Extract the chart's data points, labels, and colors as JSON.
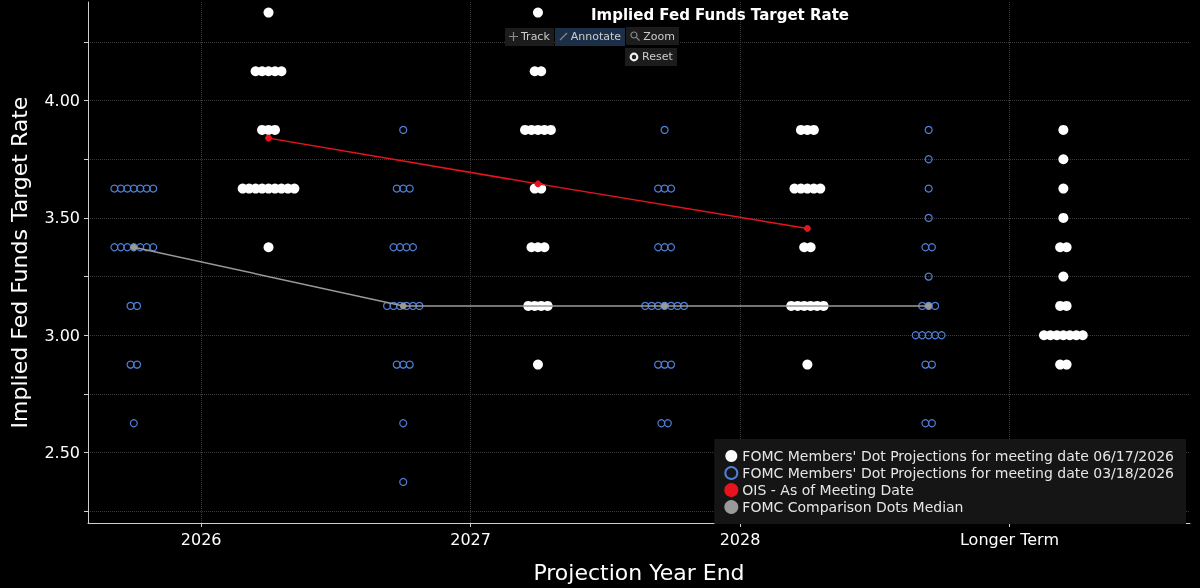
{
  "chart_data": {
    "type": "scatter",
    "title": "Implied Fed Funds Target Rate",
    "xlabel": "Projection Year End",
    "ylabel": "Implied Fed Funds Target Rate",
    "annotations": [
      "Track",
      "Annotate",
      "Zoom",
      "Reset"
    ],
    "xlim": [
      2025.58,
      2029.67
    ],
    "ylim": [
      2.2,
      4.42
    ],
    "xticks": [
      2026,
      2027,
      2028,
      {
        "value": 2029,
        "label": "Longer Term"
      }
    ],
    "yticks": [
      {
        "value": 2.25,
        "label": null
      },
      {
        "value": 2.5,
        "label": "2.50"
      },
      {
        "value": 2.75,
        "label": null
      },
      {
        "value": 3,
        "label": "3.00"
      },
      {
        "value": 3.25,
        "label": null
      },
      {
        "value": 3.5,
        "label": "3.50"
      },
      {
        "value": 3.75,
        "label": null
      },
      {
        "value": 4,
        "label": "4.00"
      },
      {
        "value": 4.25,
        "label": null
      }
    ],
    "grid": true,
    "legend": "bottom right",
    "series": [
      {
        "name": "FOMC Members' Dot Projections for meeting date 06/17/2026",
        "type": "scatter",
        "marker": "circle",
        "color": "#ffffff",
        "x": [
          2026.25,
          2026.202,
          2026.226,
          2026.25,
          2026.274,
          2026.298,
          2026.226,
          2026.25,
          2026.274,
          2026.154,
          2026.178,
          2026.202,
          2026.226,
          2026.25,
          2026.274,
          2026.298,
          2026.322,
          2026.346,
          2026.25,
          2027.25,
          2027.238,
          2027.262,
          2027.202,
          2027.226,
          2027.25,
          2027.274,
          2027.298,
          2027.238,
          2027.262,
          2027.226,
          2027.25,
          2027.274,
          2027.214,
          2027.238,
          2027.262,
          2027.286,
          2027.25,
          2028.226,
          2028.25,
          2028.274,
          2028.202,
          2028.226,
          2028.25,
          2028.274,
          2028.298,
          2028.238,
          2028.262,
          2028.19,
          2028.214,
          2028.238,
          2028.262,
          2028.286,
          2028.31,
          2028.25,
          2029.2,
          2029.2,
          2029.2,
          2029.2,
          2029.188,
          2029.212,
          2029.2,
          2029.188,
          2029.212,
          2029.128,
          2029.152,
          2029.176,
          2029.2,
          2029.224,
          2029.248,
          2029.272,
          2029.188,
          2029.212
        ],
        "values": [
          4.375,
          4.125,
          4.125,
          4.125,
          4.125,
          4.125,
          3.875,
          3.875,
          3.875,
          3.625,
          3.625,
          3.625,
          3.625,
          3.625,
          3.625,
          3.625,
          3.625,
          3.625,
          3.375,
          4.375,
          4.125,
          4.125,
          3.875,
          3.875,
          3.875,
          3.875,
          3.875,
          3.625,
          3.625,
          3.375,
          3.375,
          3.375,
          3.125,
          3.125,
          3.125,
          3.125,
          2.875,
          3.875,
          3.875,
          3.875,
          3.625,
          3.625,
          3.625,
          3.625,
          3.625,
          3.375,
          3.375,
          3.125,
          3.125,
          3.125,
          3.125,
          3.125,
          3.125,
          2.875,
          3.875,
          3.75,
          3.625,
          3.5,
          3.375,
          3.375,
          3.25,
          3.125,
          3.125,
          3.0,
          3.0,
          3.0,
          3.0,
          3.0,
          3.0,
          3.0,
          2.875,
          2.875
        ]
      },
      {
        "name": "FOMC Members' Dot Projections for meeting date 03/18/2026",
        "type": "scatter",
        "marker": "circle",
        "color": "#4f7fd8",
        "x": [
          2025.678,
          2025.702,
          2025.726,
          2025.75,
          2025.774,
          2025.798,
          2025.822,
          2025.678,
          2025.702,
          2025.726,
          2025.75,
          2025.774,
          2025.798,
          2025.822,
          2025.738,
          2025.762,
          2025.738,
          2025.762,
          2025.75,
          2026.75,
          2026.726,
          2026.75,
          2026.774,
          2026.714,
          2026.738,
          2026.762,
          2026.786,
          2026.69,
          2026.714,
          2026.738,
          2026.762,
          2026.786,
          2026.81,
          2026.726,
          2026.75,
          2026.774,
          2026.75,
          2026.75,
          2027.72,
          2027.696,
          2027.72,
          2027.744,
          2027.696,
          2027.72,
          2027.744,
          2027.648,
          2027.672,
          2027.696,
          2027.72,
          2027.744,
          2027.768,
          2027.792,
          2027.696,
          2027.72,
          2027.744,
          2027.708,
          2027.732,
          2028.7,
          2028.7,
          2028.7,
          2028.7,
          2028.688,
          2028.712,
          2028.7,
          2028.676,
          2028.7,
          2028.724,
          2028.652,
          2028.676,
          2028.7,
          2028.724,
          2028.748,
          2028.688,
          2028.712,
          2028.688,
          2028.712
        ],
        "values": [
          3.625,
          3.625,
          3.625,
          3.625,
          3.625,
          3.625,
          3.625,
          3.375,
          3.375,
          3.375,
          3.375,
          3.375,
          3.375,
          3.375,
          3.125,
          3.125,
          2.875,
          2.875,
          2.625,
          3.875,
          3.625,
          3.625,
          3.625,
          3.375,
          3.375,
          3.375,
          3.375,
          3.125,
          3.125,
          3.125,
          3.125,
          3.125,
          3.125,
          2.875,
          2.875,
          2.875,
          2.625,
          2.375,
          3.875,
          3.625,
          3.625,
          3.625,
          3.375,
          3.375,
          3.375,
          3.125,
          3.125,
          3.125,
          3.125,
          3.125,
          3.125,
          3.125,
          2.875,
          2.875,
          2.875,
          2.625,
          2.625,
          3.875,
          3.75,
          3.625,
          3.5,
          3.375,
          3.375,
          3.25,
          3.125,
          3.125,
          3.125,
          3.0,
          3.0,
          3.0,
          3.0,
          3.0,
          2.875,
          2.875,
          2.625,
          2.625
        ]
      },
      {
        "name": "OIS - As of Meeting Date",
        "type": "line",
        "marker": "circle",
        "color": "#e8141d",
        "x": [
          2026.25,
          2027.25,
          2028.25
        ],
        "values": [
          3.84,
          3.645,
          3.455
        ]
      },
      {
        "name": "FOMC Comparison Dots Median",
        "type": "line",
        "marker": "circle",
        "color": "#9a9a9a",
        "x": [
          2025.75,
          2026.75,
          2027.72,
          2028.7
        ],
        "values": [
          3.375,
          3.125,
          3.125,
          3.125
        ]
      }
    ]
  }
}
